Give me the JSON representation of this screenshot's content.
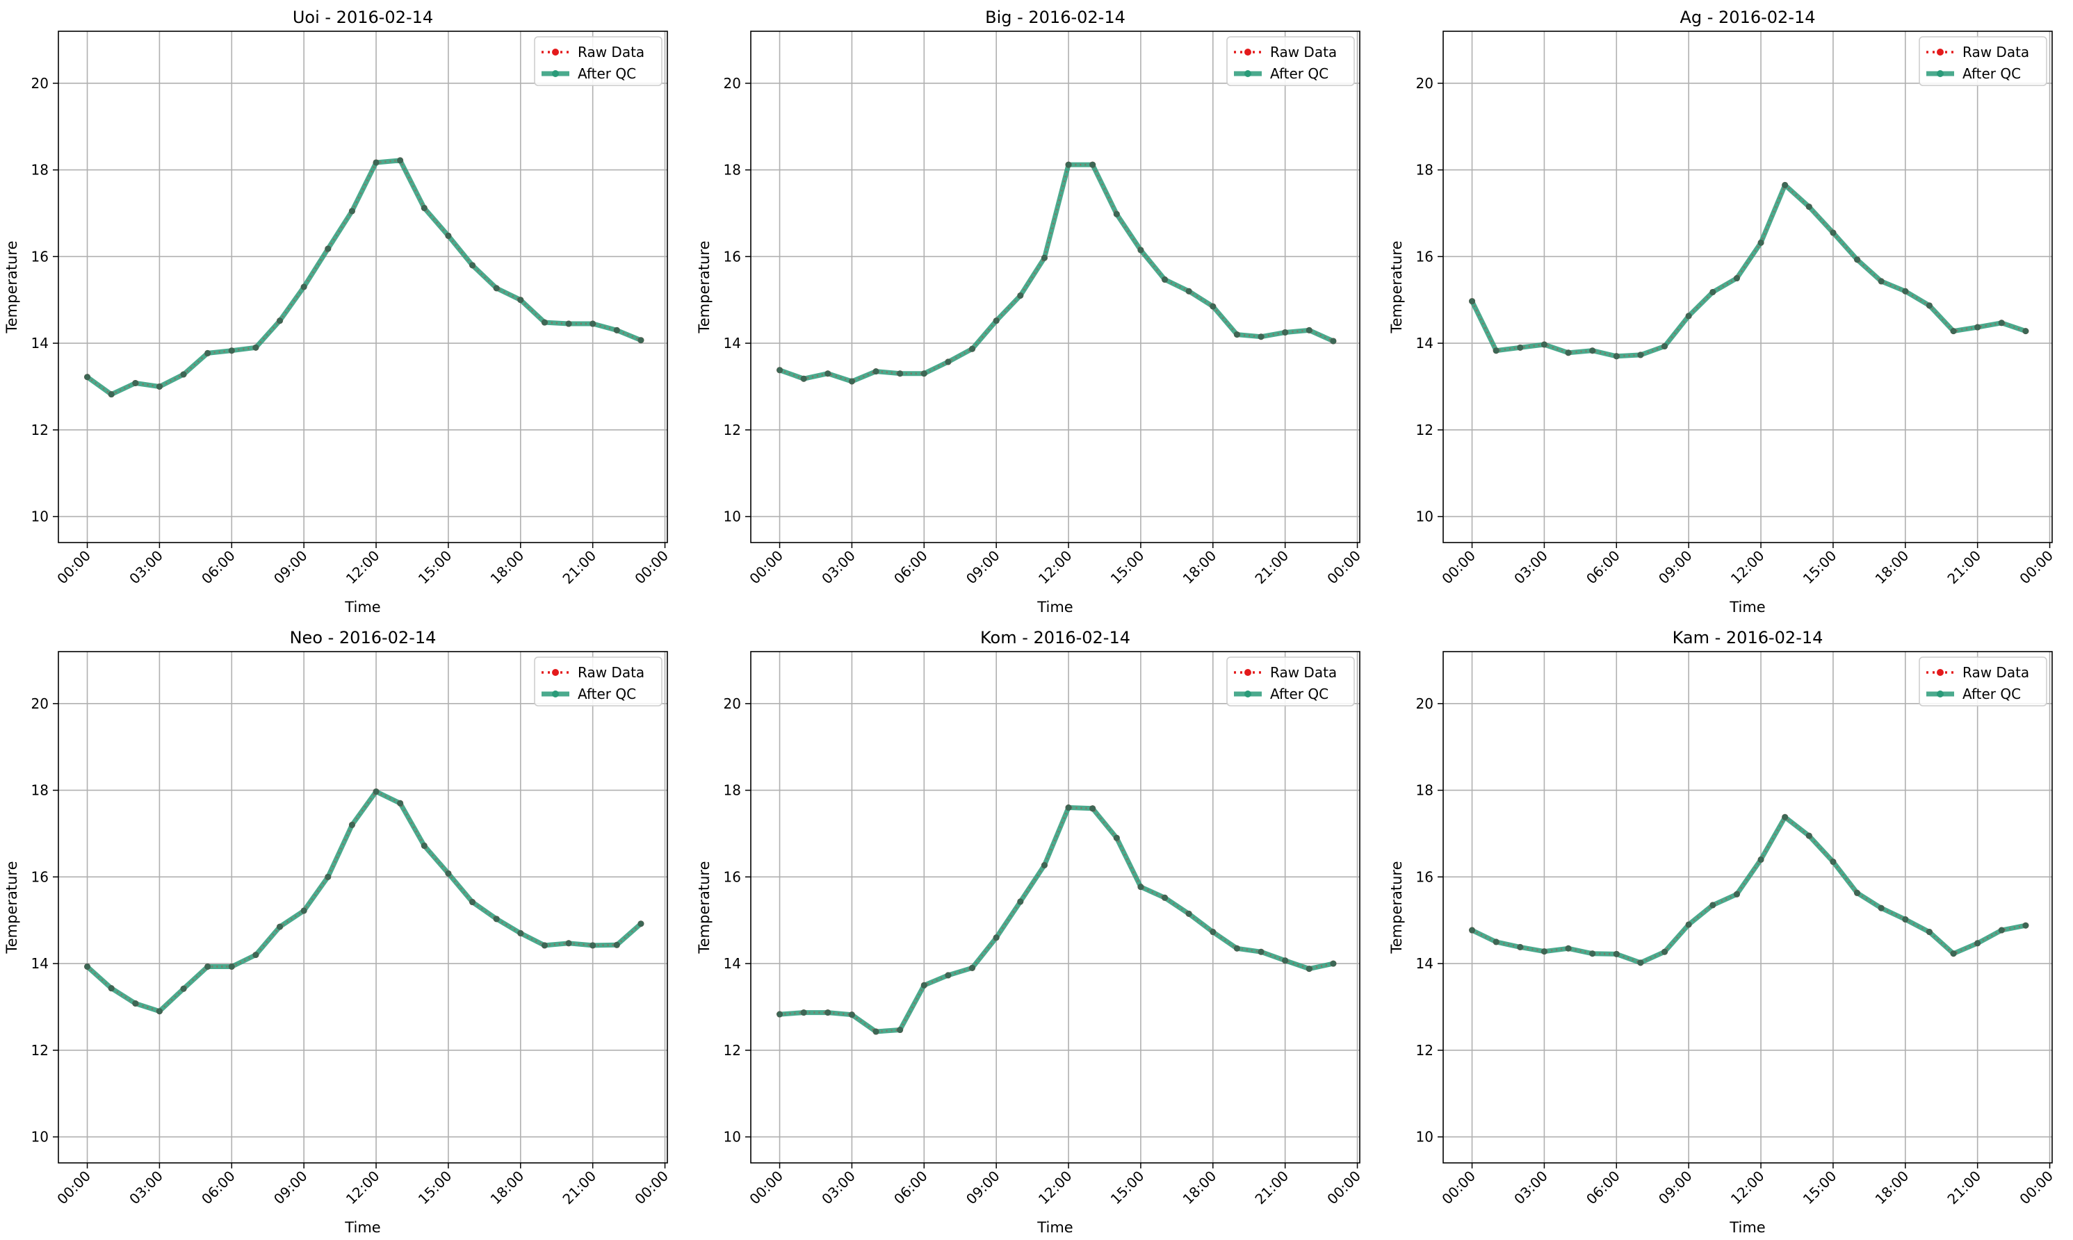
{
  "figure": {
    "colors": {
      "raw": "#e41a1c",
      "qc": "#2a9b79",
      "grid": "#b0b0b0",
      "axis": "#000000"
    },
    "x_ticks": [
      "00:00",
      "03:00",
      "06:00",
      "09:00",
      "12:00",
      "15:00",
      "18:00",
      "21:00",
      "00:00"
    ],
    "y_ticks": [
      "10",
      "12",
      "14",
      "16",
      "18",
      "20"
    ],
    "xlabel": "Time",
    "ylabel": "Temperature",
    "ylim": [
      9.4,
      21.2
    ],
    "xlim_hours": [
      -1.2,
      24.1
    ],
    "legend": {
      "raw_label": "Raw Data",
      "qc_label": "After QC",
      "placement": "upper right"
    }
  },
  "chart_data": [
    {
      "type": "line",
      "title": "Uoi - 2016-02-14",
      "x_hours": [
        0,
        1,
        2,
        3,
        4,
        5,
        6,
        7,
        8,
        9,
        10,
        11,
        12,
        13,
        14,
        15,
        16,
        17,
        18,
        19,
        20,
        21,
        22,
        23
      ],
      "series": [
        {
          "name": "Raw Data",
          "values": [
            13.22,
            12.82,
            13.08,
            13.0,
            13.28,
            13.77,
            13.83,
            13.9,
            14.52,
            15.3,
            16.18,
            17.05,
            18.17,
            18.22,
            17.12,
            16.48,
            15.8,
            15.27,
            15.0,
            14.48,
            14.45,
            14.45,
            14.3,
            14.07
          ]
        },
        {
          "name": "After QC",
          "values": [
            13.22,
            12.82,
            13.08,
            13.0,
            13.28,
            13.77,
            13.83,
            13.9,
            14.52,
            15.3,
            16.18,
            17.05,
            18.17,
            18.22,
            17.12,
            16.48,
            15.8,
            15.27,
            15.0,
            14.48,
            14.45,
            14.45,
            14.3,
            14.07
          ]
        }
      ]
    },
    {
      "type": "line",
      "title": "Big - 2016-02-14",
      "x_hours": [
        0,
        1,
        2,
        3,
        4,
        5,
        6,
        7,
        8,
        9,
        10,
        11,
        12,
        13,
        14,
        15,
        16,
        17,
        18,
        19,
        20,
        21,
        22,
        23
      ],
      "series": [
        {
          "name": "Raw Data",
          "values": [
            13.38,
            13.18,
            13.3,
            13.12,
            13.35,
            13.3,
            13.3,
            13.57,
            13.87,
            14.52,
            15.1,
            15.97,
            18.12,
            18.12,
            16.98,
            16.15,
            15.47,
            15.2,
            14.85,
            14.2,
            14.15,
            14.25,
            14.3,
            14.05
          ]
        },
        {
          "name": "After QC",
          "values": [
            13.38,
            13.18,
            13.3,
            13.12,
            13.35,
            13.3,
            13.3,
            13.57,
            13.87,
            14.52,
            15.1,
            15.97,
            18.12,
            18.12,
            16.98,
            16.15,
            15.47,
            15.2,
            14.85,
            14.2,
            14.15,
            14.25,
            14.3,
            14.05
          ]
        }
      ]
    },
    {
      "type": "line",
      "title": "Ag - 2016-02-14",
      "x_hours": [
        0,
        1,
        2,
        3,
        4,
        5,
        6,
        7,
        8,
        9,
        10,
        11,
        12,
        13,
        14,
        15,
        16,
        17,
        18,
        19,
        20,
        21,
        22,
        23
      ],
      "series": [
        {
          "name": "Raw Data",
          "values": [
            14.97,
            13.83,
            13.9,
            13.97,
            13.78,
            13.83,
            13.7,
            13.73,
            13.93,
            14.63,
            15.18,
            15.5,
            16.32,
            17.65,
            17.15,
            16.55,
            15.93,
            15.43,
            15.2,
            14.87,
            14.28,
            14.37,
            14.47,
            14.28
          ]
        },
        {
          "name": "After QC",
          "values": [
            14.97,
            13.83,
            13.9,
            13.97,
            13.78,
            13.83,
            13.7,
            13.73,
            13.93,
            14.63,
            15.18,
            15.5,
            16.32,
            17.65,
            17.15,
            16.55,
            15.93,
            15.43,
            15.2,
            14.87,
            14.28,
            14.37,
            14.47,
            14.28
          ]
        }
      ]
    },
    {
      "type": "line",
      "title": "Neo - 2016-02-14",
      "x_hours": [
        0,
        1,
        2,
        3,
        4,
        5,
        6,
        7,
        8,
        9,
        10,
        11,
        12,
        13,
        14,
        15,
        16,
        17,
        18,
        19,
        20,
        21,
        22,
        23
      ],
      "series": [
        {
          "name": "Raw Data",
          "values": [
            13.93,
            13.43,
            13.08,
            12.9,
            13.42,
            13.93,
            13.93,
            14.2,
            14.85,
            15.22,
            16.0,
            17.2,
            17.97,
            17.7,
            16.72,
            16.08,
            15.42,
            15.03,
            14.7,
            14.42,
            14.47,
            14.42,
            14.43,
            14.92
          ]
        },
        {
          "name": "After QC",
          "values": [
            13.93,
            13.43,
            13.08,
            12.9,
            13.42,
            13.93,
            13.93,
            14.2,
            14.85,
            15.22,
            16.0,
            17.2,
            17.97,
            17.7,
            16.72,
            16.08,
            15.42,
            15.03,
            14.7,
            14.42,
            14.47,
            14.42,
            14.43,
            14.92
          ]
        }
      ]
    },
    {
      "type": "line",
      "title": "Kom - 2016-02-14",
      "x_hours": [
        0,
        1,
        2,
        3,
        4,
        5,
        6,
        7,
        8,
        9,
        10,
        11,
        12,
        13,
        14,
        15,
        16,
        17,
        18,
        19,
        20,
        21,
        22,
        23
      ],
      "series": [
        {
          "name": "Raw Data",
          "values": [
            12.83,
            12.87,
            12.87,
            12.82,
            12.43,
            12.47,
            13.5,
            13.73,
            13.9,
            14.6,
            15.43,
            16.27,
            17.6,
            17.58,
            16.9,
            15.77,
            15.52,
            15.15,
            14.73,
            14.35,
            14.27,
            14.07,
            13.88,
            14.0
          ]
        },
        {
          "name": "After QC",
          "values": [
            12.83,
            12.87,
            12.87,
            12.82,
            12.43,
            12.47,
            13.5,
            13.73,
            13.9,
            14.6,
            15.43,
            16.27,
            17.6,
            17.58,
            16.9,
            15.77,
            15.52,
            15.15,
            14.73,
            14.35,
            14.27,
            14.07,
            13.88,
            14.0
          ]
        }
      ]
    },
    {
      "type": "line",
      "title": "Kam - 2016-02-14",
      "x_hours": [
        0,
        1,
        2,
        3,
        4,
        5,
        6,
        7,
        8,
        9,
        10,
        11,
        12,
        13,
        14,
        15,
        16,
        17,
        18,
        19,
        20,
        21,
        22,
        23
      ],
      "series": [
        {
          "name": "Raw Data",
          "values": [
            14.77,
            14.5,
            14.38,
            14.28,
            14.35,
            14.23,
            14.22,
            14.02,
            14.27,
            14.9,
            15.35,
            15.6,
            16.4,
            17.38,
            16.95,
            16.35,
            15.63,
            15.28,
            15.02,
            14.73,
            14.23,
            14.47,
            14.77,
            14.88
          ]
        },
        {
          "name": "After QC",
          "values": [
            14.77,
            14.5,
            14.38,
            14.28,
            14.35,
            14.23,
            14.22,
            14.02,
            14.27,
            14.9,
            15.35,
            15.6,
            16.4,
            17.38,
            16.95,
            16.35,
            15.63,
            15.28,
            15.02,
            14.73,
            14.23,
            14.47,
            14.77,
            14.88
          ]
        }
      ]
    }
  ]
}
